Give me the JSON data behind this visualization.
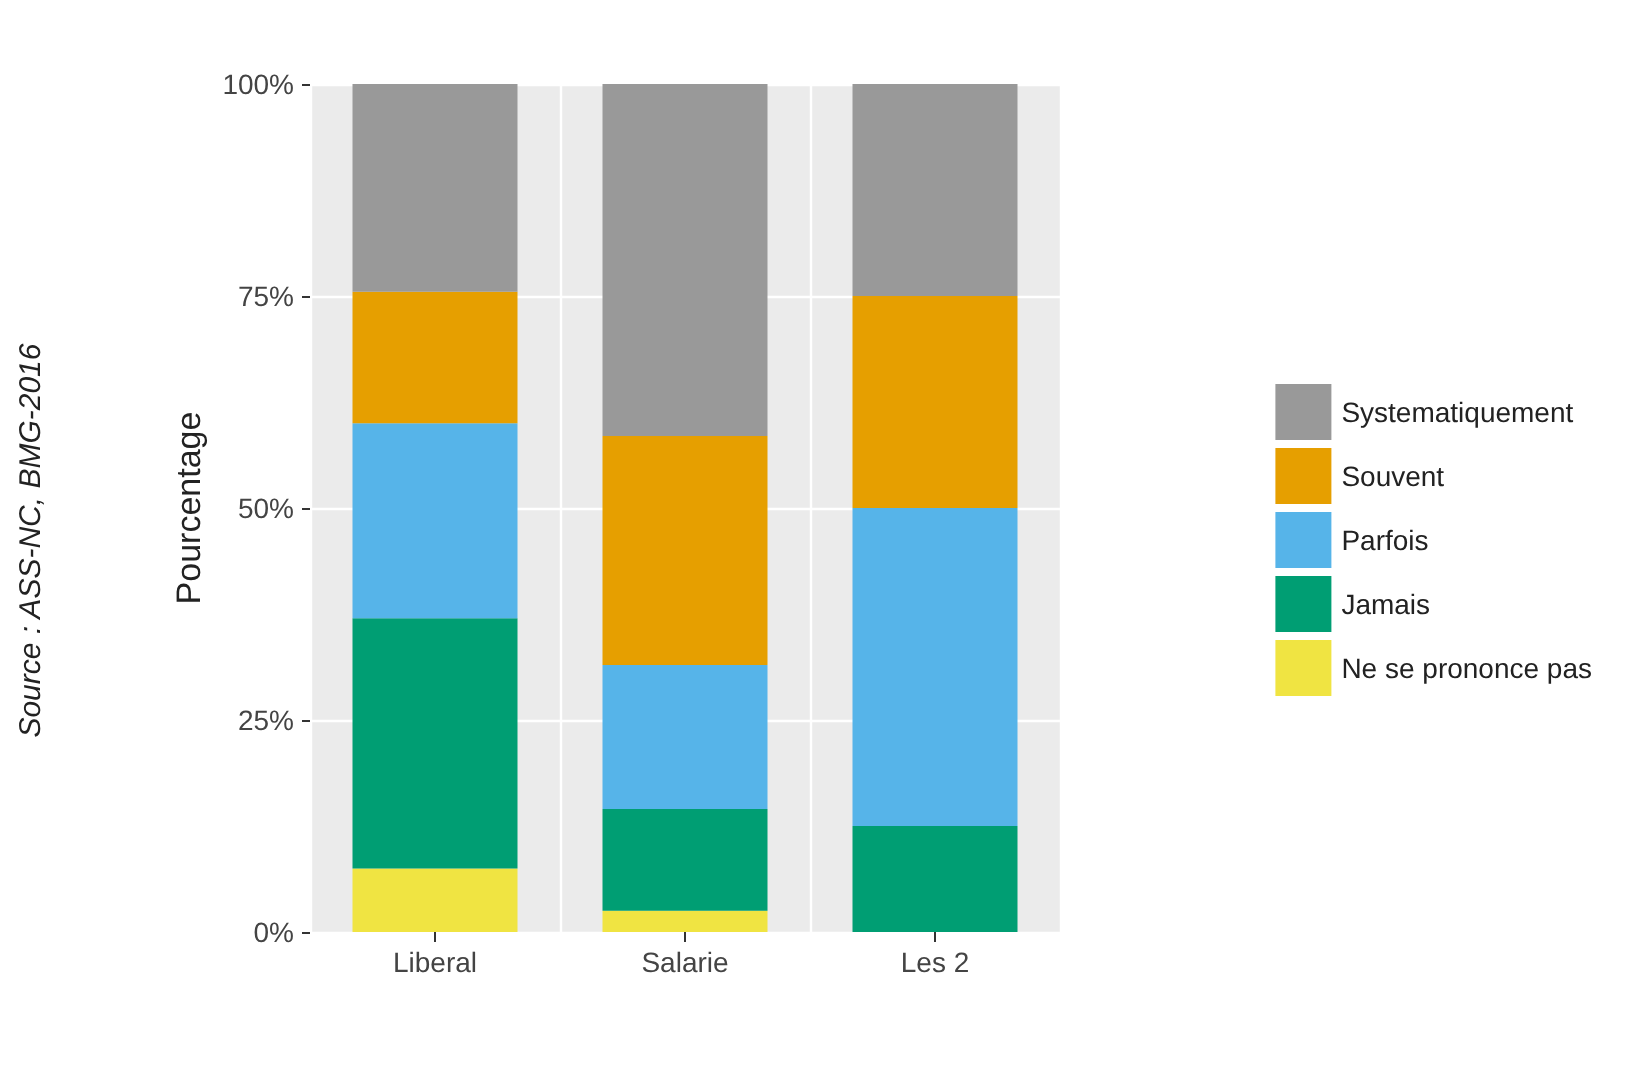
{
  "chart_data": {
    "type": "bar",
    "stacked": true,
    "ylabel": "Pourcentage",
    "categories": [
      "Liberal",
      "Salarie",
      "Les 2"
    ],
    "series": [
      {
        "name": "Ne se prononce pas",
        "color": "#f0e442",
        "values": [
          7.5,
          2.5,
          0
        ]
      },
      {
        "name": "Jamais",
        "color": "#009e73",
        "values": [
          29.5,
          12,
          12.5
        ]
      },
      {
        "name": "Parfois",
        "color": "#56b4e9",
        "values": [
          23,
          17,
          37.5
        ]
      },
      {
        "name": "Souvent",
        "color": "#e69f00",
        "values": [
          15.5,
          27,
          25
        ]
      },
      {
        "name": "Systematiquement",
        "color": "#999999",
        "values": [
          24.5,
          41.5,
          25
        ]
      }
    ],
    "ylim": [
      0,
      100
    ],
    "yticks": [
      {
        "value": 0,
        "label": "0%"
      },
      {
        "value": 25,
        "label": "25%"
      },
      {
        "value": 50,
        "label": "50%"
      },
      {
        "value": 75,
        "label": "75%"
      },
      {
        "value": 100,
        "label": "100%"
      }
    ],
    "grid": true,
    "legend": "right",
    "annotations": [
      "Source : ASS-NC, BMG-2016"
    ]
  }
}
